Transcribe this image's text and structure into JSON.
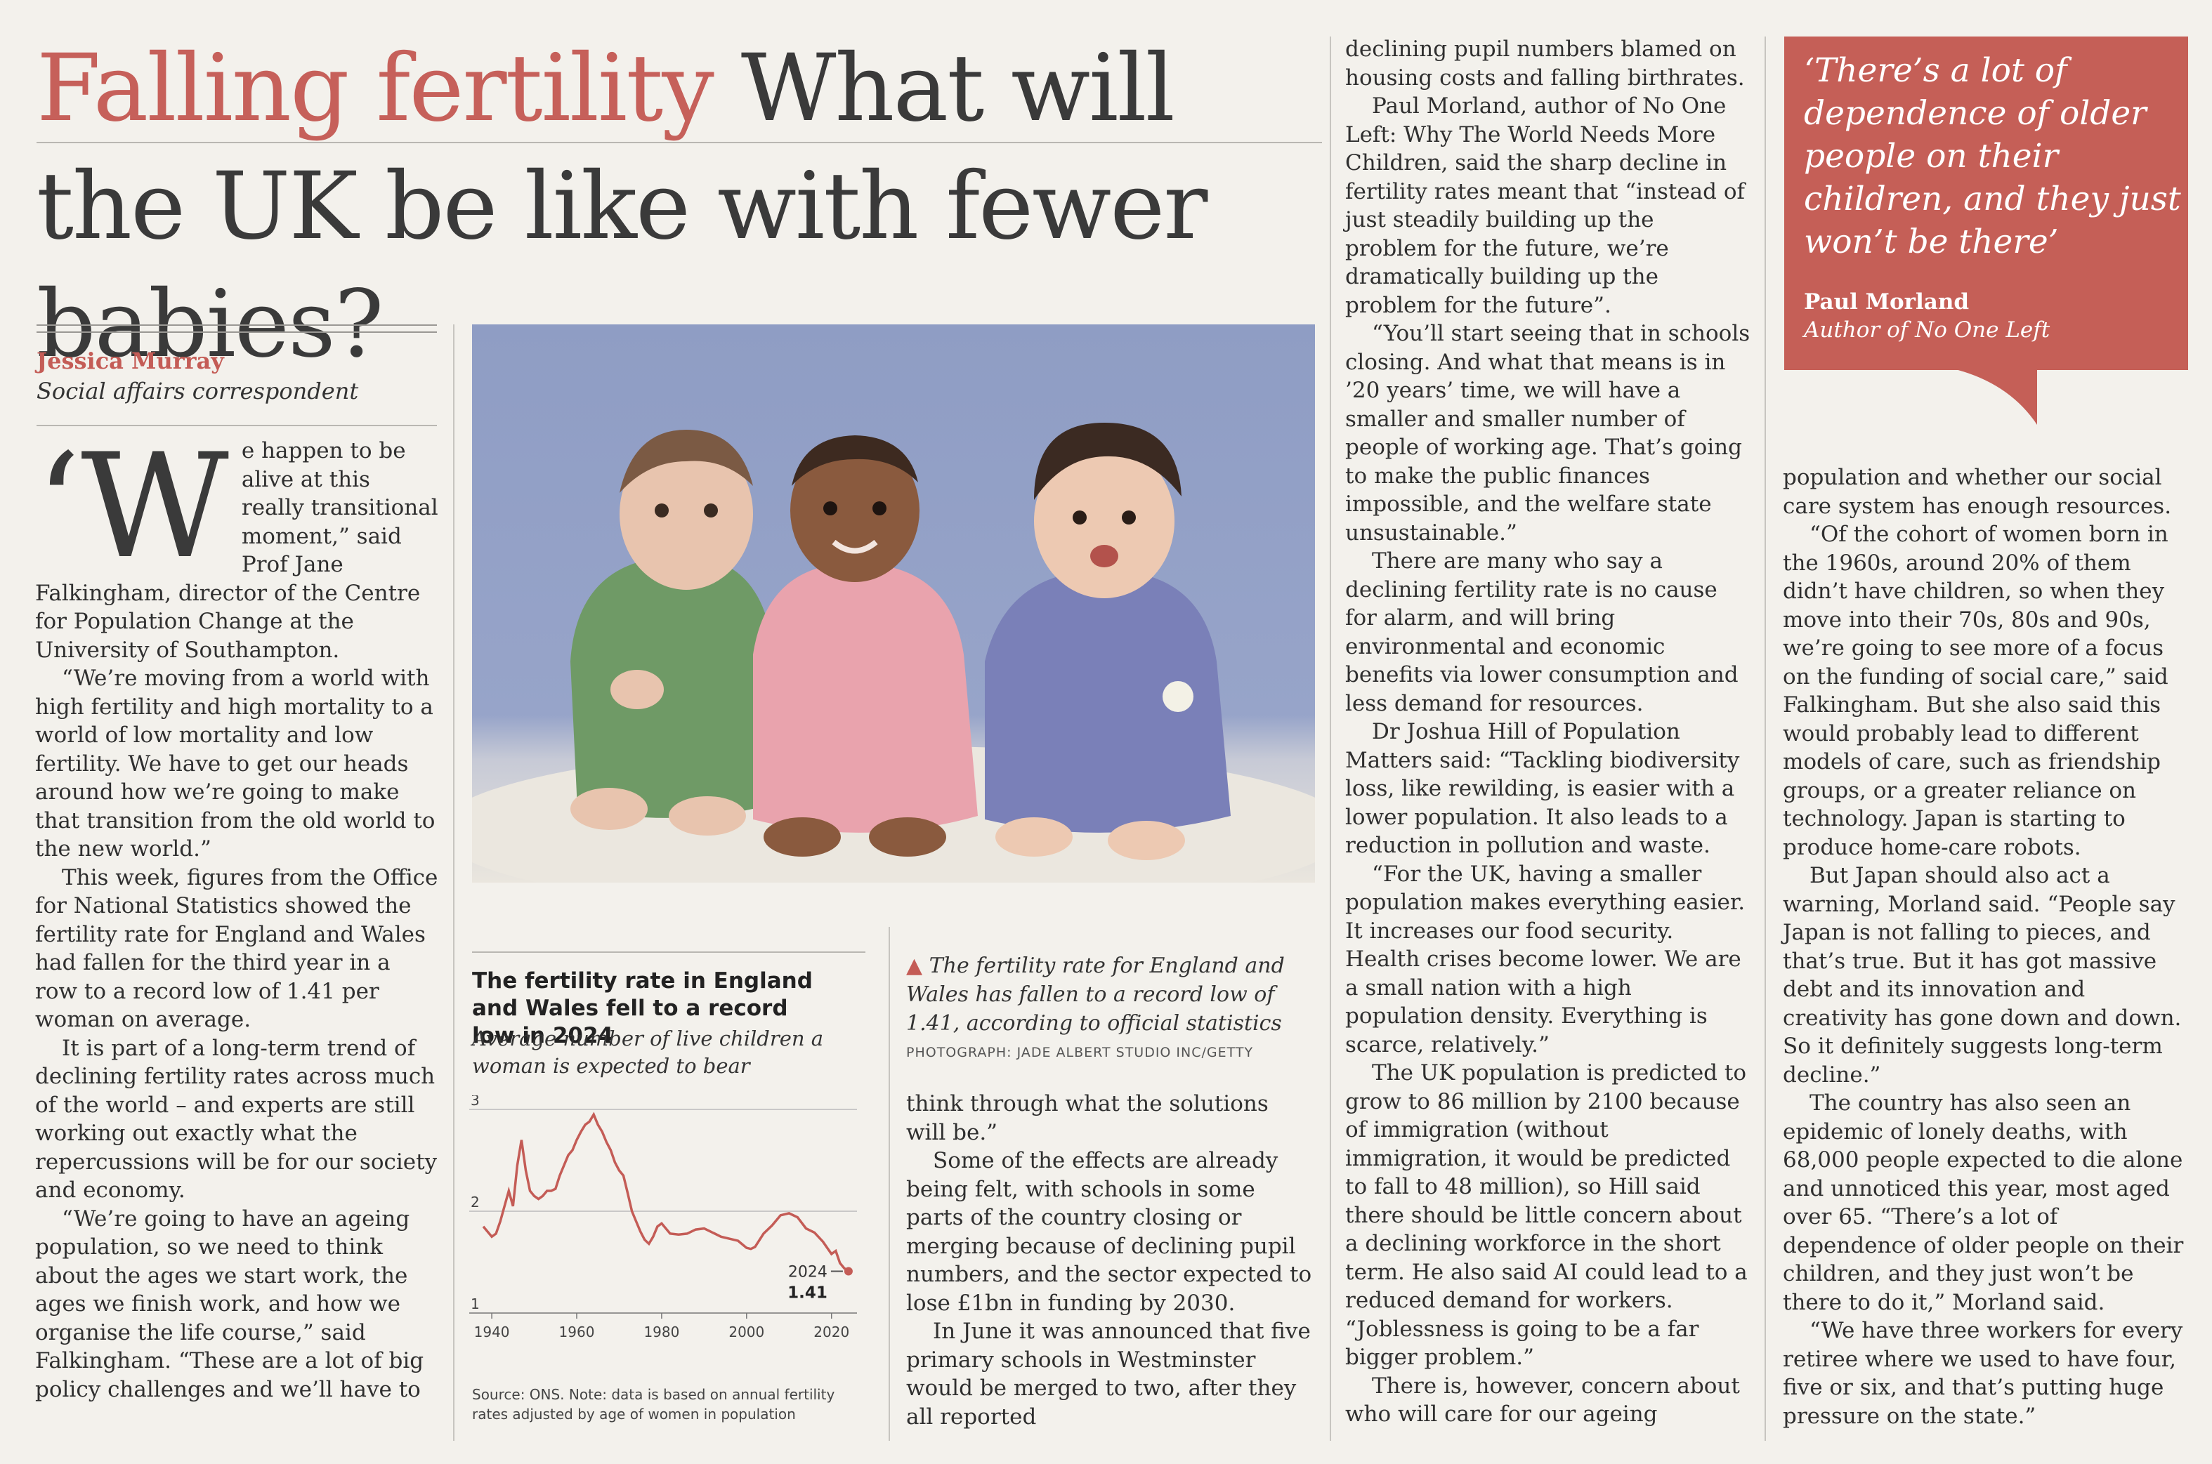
{
  "headline": {
    "kicker": "Falling fertility",
    "title": "What will the UK be like with fewer babies?"
  },
  "byline": {
    "name": "Jessica Murray",
    "role": "Social affairs correspondent"
  },
  "col1": {
    "dropcap": "‘W",
    "p1_lead": "e happen to be alive at this really transitional moment,” said Prof Jane Falkingham, director of the Centre for Population Change at the University of Southampton.",
    "p2": "“We’re moving from a world with high fertility and high mortality to a world of low mortality and low fertility. We have to get our heads around how we’re going to make that transition from the old world to the new world.”",
    "p3": "This week, figures from the Office for National Statistics showed the fertility rate for England and Wales had fallen for the third year in a row to a record low of 1.41 per woman on average.",
    "p4": "It is part of a long-term trend of declining fertility rates across much of the world – and experts are still working out exactly what the repercussions will be for our society and economy.",
    "p5": "“We’re going to have an ageing population, so we need to think about the ages we start work, the ages we finish work, and how we organise the life course,” said Falkingham. “These are a lot of big policy challenges and we’ll have to"
  },
  "chart": {
    "title": "The fertility rate in England and Wales fell to a record low in 2024",
    "subtitle": "Average number of live children a woman is expected to bear",
    "source": "Source: ONS. Note: data is based on annual fertility rates adjusted by age of women in population",
    "annotation_year": "2024",
    "annotation_value": "1.41",
    "line_color": "#c45c56"
  },
  "chart_data": {
    "type": "line",
    "title": "The fertility rate in England and Wales fell to a record low in 2024",
    "subtitle": "Average number of live children a woman is expected to bear",
    "xlabel": "",
    "ylabel": "",
    "xlim": [
      1938,
      2026
    ],
    "ylim": [
      1,
      3
    ],
    "x_ticks": [
      "1940",
      "1960",
      "1980",
      "2000",
      "2020"
    ],
    "y_ticks": [
      "1",
      "2",
      "3"
    ],
    "grid": true,
    "x": [
      1938,
      1940,
      1941,
      1942,
      1943,
      1944,
      1945,
      1946,
      1947,
      1948,
      1949,
      1950,
      1951,
      1952,
      1953,
      1954,
      1955,
      1956,
      1957,
      1958,
      1959,
      1960,
      1961,
      1962,
      1963,
      1964,
      1965,
      1966,
      1967,
      1968,
      1969,
      1970,
      1971,
      1972,
      1973,
      1974,
      1975,
      1976,
      1977,
      1978,
      1979,
      1980,
      1982,
      1984,
      1986,
      1988,
      1990,
      1992,
      1994,
      1996,
      1998,
      2000,
      2001,
      2002,
      2004,
      2006,
      2008,
      2010,
      2012,
      2014,
      2016,
      2018,
      2020,
      2021,
      2022,
      2023,
      2024
    ],
    "series": [
      {
        "values": [
          1.85,
          1.75,
          1.78,
          1.9,
          2.05,
          2.2,
          2.05,
          2.45,
          2.7,
          2.4,
          2.2,
          2.15,
          2.12,
          2.15,
          2.2,
          2.2,
          2.22,
          2.35,
          2.45,
          2.55,
          2.6,
          2.7,
          2.78,
          2.85,
          2.88,
          2.95,
          2.85,
          2.78,
          2.68,
          2.6,
          2.48,
          2.4,
          2.35,
          2.18,
          2.0,
          1.9,
          1.8,
          1.72,
          1.68,
          1.75,
          1.85,
          1.88,
          1.78,
          1.77,
          1.78,
          1.82,
          1.83,
          1.79,
          1.75,
          1.73,
          1.71,
          1.64,
          1.63,
          1.65,
          1.78,
          1.86,
          1.96,
          1.98,
          1.94,
          1.83,
          1.79,
          1.7,
          1.58,
          1.61,
          1.49,
          1.44,
          1.41
        ]
      }
    ],
    "annotations": [
      {
        "text": "2024",
        "x": 2024
      },
      {
        "text": "1.41",
        "x": 2024
      }
    ]
  },
  "photo": {
    "caption": "The fertility rate for England and Wales has fallen to a record low of 1.41, according to official statistics",
    "credit": "PHOTOGRAPH: JADE ALBERT STUDIO INC/GETTY"
  },
  "col3": {
    "p1": "think through what the solutions will be.”",
    "p2": "Some of the effects are already being felt, with schools in some parts of the country closing or merging because of declining pupil numbers, and the sector expected to lose £1bn in funding by 2030.",
    "p3": "In June it was announced that five primary schools in Westminster would be merged to two, after they all reported"
  },
  "col4": {
    "p1": "declining pupil numbers blamed on housing costs and falling birthrates.",
    "p2": "Paul Morland, author of No One Left: Why The World Needs More Children, said the sharp decline in fertility rates meant that “instead of just steadily building up the problem for the future, we’re dramatically building up the problem for the future”.",
    "p3": "“You’ll start seeing that in schools closing. And what that means is in ’20 years’ time, we will have a smaller and smaller number of people of working age. That’s going to make the public finances impossible, and the welfare state unsustainable.”",
    "p4": "There are many who say a declining fertility rate is no cause for alarm, and will bring environmental and economic benefits via lower consumption and less demand for resources.",
    "p5": "Dr Joshua Hill of Population Matters said: “Tackling biodiversity loss, like rewilding, is easier with a lower population. It also leads to a reduction in pollution and waste.",
    "p6": "“For the UK, having a smaller population makes everything easier. It increases our food security. Health crises become lower. We are a small nation with a high population density. Everything is scarce, relatively.”",
    "p7": "The UK population is predicted to grow to 86 million by 2100 because of immigration (without immigration, it would be predicted to fall to 48 million), so Hill said there should be little concern about a declining workforce in the short term. He also said AI could lead to a reduced demand for workers. “Joblessness is going to be a far bigger problem.”",
    "p8": "There is, however, concern about who will care for our ageing"
  },
  "pullquote": {
    "text": "‘There’s a lot of dependence of older people on their children, and they just won’t be there’",
    "name": "Paul Morland",
    "role": "Author of No One Left",
    "color": "#c55f57"
  },
  "col5": {
    "p1": "population and whether our social care system has enough resources.",
    "p2": "“Of the cohort of women born in the 1960s, around 20% of them didn’t have children, so when they move into their 70s, 80s and 90s, we’re going to see more of a focus on the funding of social care,” said Falkingham. But she also said this would probably lead to different models of care, such as friendship groups, or a greater reliance on technology. Japan is starting to produce home-care robots.",
    "p3": "But Japan should also act a warning, Morland said. “People say Japan is not falling to pieces, and that’s true. But it has got massive debt and its innovation and creativity has gone down and down. So it definitely suggests long-term decline.”",
    "p4": "The country has also seen an epidemic of lonely deaths, with 68,000 people expected to die alone and unnoticed this year, most aged over 65. “There’s a lot of dependence of older people on their children, and they just won’t be there to do it,” Morland said.",
    "p5": "“We have three workers for every retiree where we used to have four, five or six, and that’s putting huge pressure on the state.”"
  }
}
